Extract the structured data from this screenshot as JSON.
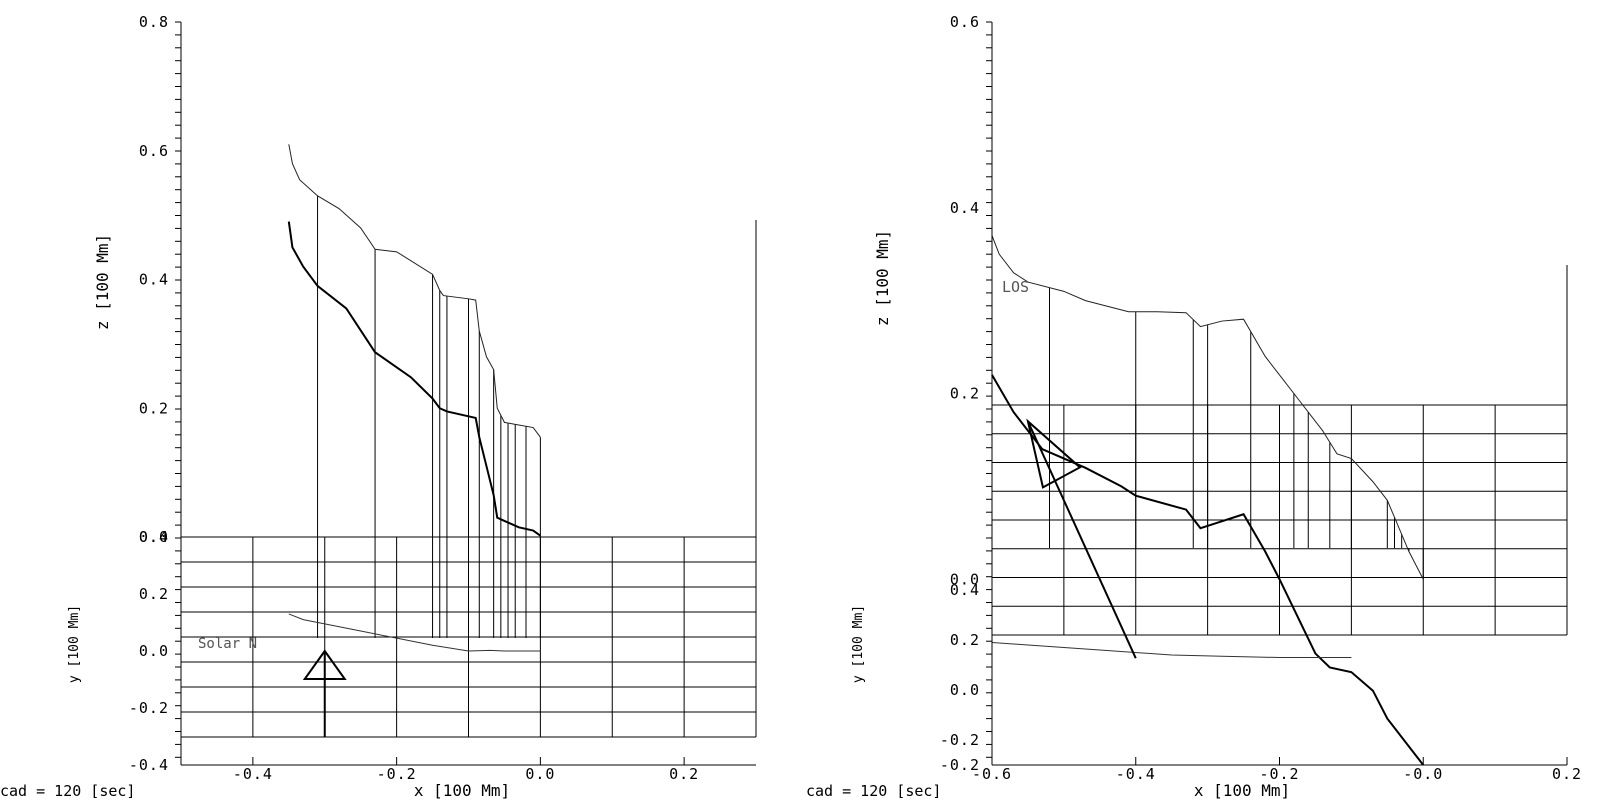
{
  "chart_data": [
    {
      "type": "line",
      "panel": "left",
      "xlabel": "x [100 Mm]",
      "zlabel": "z [100 Mm]",
      "ylabel": "y [100 Mm]",
      "x_ticks": [
        "-0.4",
        "-0.2",
        "0.0",
        "0.2"
      ],
      "z_ticks": [
        "0.0",
        "0.2",
        "0.4",
        "0.6",
        "0.8"
      ],
      "y_ticks": [
        "-0.4",
        "-0.2",
        "0.0",
        "0.2",
        "0.4"
      ],
      "xlim": [
        -0.5,
        0.3
      ],
      "zlim": [
        0.0,
        0.8
      ],
      "ylim": [
        -0.4,
        0.4
      ],
      "grid": true,
      "annotation": "Solar N",
      "footer": "cad =  120 [sec]",
      "series": [
        {
          "role": "upper-contour",
          "x": [
            -0.35,
            -0.345,
            -0.335,
            -0.31,
            -0.28,
            -0.25,
            -0.23,
            -0.2,
            -0.15,
            -0.14,
            -0.135,
            -0.1,
            -0.09,
            -0.085,
            -0.075,
            -0.065,
            -0.06,
            -0.05,
            -0.035,
            -0.01,
            0.0
          ],
          "z": [
            0.61,
            0.58,
            0.555,
            0.53,
            0.51,
            0.48,
            0.447,
            0.443,
            0.408,
            0.383,
            0.375,
            0.37,
            0.368,
            0.32,
            0.28,
            0.26,
            0.2,
            0.178,
            0.175,
            0.17,
            0.155
          ]
        },
        {
          "role": "lower-contour",
          "x": [
            -0.35,
            -0.345,
            -0.33,
            -0.31,
            -0.27,
            -0.23,
            -0.18,
            -0.15,
            -0.14,
            -0.13,
            -0.09,
            -0.085,
            -0.075,
            -0.065,
            -0.06,
            -0.05,
            -0.03,
            -0.01,
            0.0
          ],
          "z": [
            0.49,
            0.45,
            0.42,
            0.39,
            0.355,
            0.287,
            0.248,
            0.215,
            0.2,
            0.195,
            0.185,
            0.155,
            0.11,
            0.065,
            0.03,
            0.025,
            0.015,
            0.01,
            0.002
          ]
        },
        {
          "role": "footprint",
          "x": [
            -0.35,
            -0.33,
            -0.3,
            -0.25,
            -0.2,
            -0.15,
            -0.1,
            -0.07,
            -0.05,
            0.0
          ],
          "y": [
            0.13,
            0.11,
            0.095,
            0.07,
            0.045,
            0.02,
            0.0,
            0.002,
            0.0,
            0.0
          ]
        }
      ],
      "verticals_x": [
        -0.31,
        -0.23,
        -0.15,
        -0.14,
        -0.13,
        -0.1,
        -0.085,
        -0.065,
        -0.055,
        -0.045,
        -0.035,
        -0.02,
        0.0
      ],
      "arrow": {
        "x": -0.3,
        "y_from": -0.3,
        "y_to": 0.0
      }
    },
    {
      "type": "line",
      "panel": "right",
      "xlabel": "x [100 Mm]",
      "zlabel": "z [100 Mm]",
      "ylabel": "y [100 Mm]",
      "x_ticks": [
        "-0.6",
        "-0.4",
        "-0.2",
        "-0.0",
        "0.2"
      ],
      "z_ticks": [
        "-0.2",
        "0.0",
        "0.2",
        "0.4",
        "0.6"
      ],
      "y_ticks": [
        "-0.2",
        "0.0",
        "0.2",
        "0.4"
      ],
      "xlim": [
        -0.6,
        0.2
      ],
      "zlim": [
        -0.2,
        0.6
      ],
      "ylim": [
        -0.3,
        0.5
      ],
      "grid": true,
      "annotation": "LOS",
      "footer": "cad =  120 [sec]",
      "series": [
        {
          "role": "upper-contour",
          "x": [
            -0.6,
            -0.59,
            -0.57,
            -0.55,
            -0.5,
            -0.47,
            -0.41,
            -0.37,
            -0.33,
            -0.31,
            -0.28,
            -0.25,
            -0.22,
            -0.18,
            -0.14,
            -0.12,
            -0.1,
            -0.07,
            -0.05,
            -0.02,
            0.0
          ],
          "z": [
            0.37,
            0.35,
            0.33,
            0.32,
            0.31,
            0.3,
            0.288,
            0.288,
            0.287,
            0.272,
            0.278,
            0.28,
            0.24,
            0.2,
            0.16,
            0.135,
            0.13,
            0.105,
            0.085,
            0.03,
            0.0
          ]
        },
        {
          "role": "lower-contour",
          "x": [
            -0.6,
            -0.57,
            -0.53,
            -0.47,
            -0.42,
            -0.4,
            -0.33,
            -0.31,
            -0.29,
            -0.25,
            -0.22,
            -0.2,
            -0.15,
            -0.13,
            -0.1,
            -0.07,
            -0.05,
            0.0
          ],
          "z": [
            0.22,
            0.18,
            0.14,
            0.12,
            0.1,
            0.09,
            0.075,
            0.055,
            0.06,
            0.07,
            0.03,
            0.0,
            -0.08,
            -0.095,
            -0.1,
            -0.12,
            -0.15,
            -0.2
          ]
        },
        {
          "role": "footprint",
          "x": [
            -0.6,
            -0.55,
            -0.45,
            -0.35,
            -0.28,
            -0.2,
            -0.1
          ],
          "y": [
            0.19,
            0.18,
            0.16,
            0.14,
            0.135,
            0.13,
            0.13
          ]
        }
      ],
      "verticals_x": [
        -0.52,
        -0.4,
        -0.32,
        -0.3,
        -0.24,
        -0.18,
        -0.16,
        -0.13,
        -0.1,
        -0.05,
        -0.04,
        -0.03,
        -0.02,
        0.0
      ],
      "arrow": {
        "x": -0.4,
        "z_from": -0.085,
        "x_to": -0.55,
        "z_to": 0.17
      }
    }
  ]
}
